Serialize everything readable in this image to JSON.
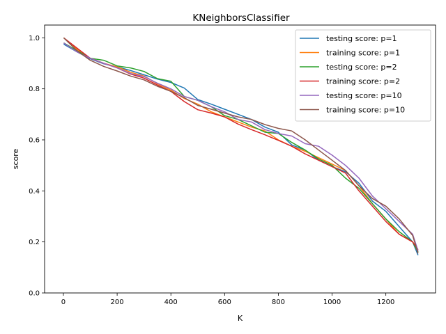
{
  "chart_data": {
    "type": "line",
    "title": "KNeighborsClassifier",
    "xlabel": "K",
    "ylabel": "score",
    "xlim": [
      -70,
      1385
    ],
    "ylim": [
      0.0,
      1.05
    ],
    "xticks": [
      0,
      200,
      400,
      600,
      800,
      1000,
      1200
    ],
    "yticks": [
      0.0,
      0.2,
      0.4,
      0.6,
      0.8,
      1.0
    ],
    "xtick_labels": [
      "0",
      "200",
      "400",
      "600",
      "800",
      "1000",
      "1200"
    ],
    "ytick_labels": [
      "0.0",
      "0.2",
      "0.4",
      "0.6",
      "0.8",
      "1.0"
    ],
    "grid": false,
    "legend_position": "top-right",
    "x": [
      1,
      50,
      100,
      150,
      200,
      250,
      300,
      350,
      400,
      450,
      500,
      550,
      600,
      650,
      700,
      750,
      800,
      850,
      900,
      950,
      1000,
      1050,
      1100,
      1150,
      1200,
      1250,
      1300,
      1320
    ],
    "series": [
      {
        "name": "testing score: p=1",
        "color": "#1f77b4",
        "values": [
          0.975,
          0.945,
          0.918,
          0.898,
          0.886,
          0.872,
          0.855,
          0.838,
          0.825,
          0.803,
          0.758,
          0.74,
          0.72,
          0.7,
          0.68,
          0.65,
          0.63,
          0.58,
          0.56,
          0.52,
          0.495,
          0.475,
          0.43,
          0.36,
          0.32,
          0.26,
          0.2,
          0.148
        ]
      },
      {
        "name": "training score: p=1",
        "color": "#ff7f0e",
        "values": [
          1.0,
          0.955,
          0.92,
          0.9,
          0.886,
          0.865,
          0.85,
          0.82,
          0.795,
          0.762,
          0.74,
          0.71,
          0.69,
          0.67,
          0.65,
          0.635,
          0.6,
          0.575,
          0.555,
          0.53,
          0.505,
          0.48,
          0.42,
          0.35,
          0.29,
          0.23,
          0.2,
          0.16
        ]
      },
      {
        "name": "testing score: p=2",
        "color": "#2ca02c",
        "values": [
          0.98,
          0.95,
          0.92,
          0.912,
          0.89,
          0.882,
          0.868,
          0.84,
          0.83,
          0.77,
          0.755,
          0.73,
          0.695,
          0.68,
          0.655,
          0.63,
          0.625,
          0.59,
          0.56,
          0.525,
          0.5,
          0.45,
          0.41,
          0.35,
          0.29,
          0.24,
          0.2,
          0.16
        ]
      },
      {
        "name": "training score: p=2",
        "color": "#d62728",
        "values": [
          1.0,
          0.96,
          0.92,
          0.9,
          0.882,
          0.858,
          0.842,
          0.815,
          0.79,
          0.75,
          0.718,
          0.705,
          0.69,
          0.662,
          0.64,
          0.62,
          0.598,
          0.575,
          0.545,
          0.52,
          0.495,
          0.47,
          0.4,
          0.34,
          0.28,
          0.23,
          0.2,
          0.17
        ]
      },
      {
        "name": "testing score: p=10",
        "color": "#9467bd",
        "values": [
          0.98,
          0.945,
          0.92,
          0.9,
          0.882,
          0.86,
          0.848,
          0.822,
          0.8,
          0.77,
          0.755,
          0.73,
          0.71,
          0.68,
          0.67,
          0.64,
          0.625,
          0.615,
          0.585,
          0.575,
          0.54,
          0.5,
          0.45,
          0.38,
          0.33,
          0.28,
          0.23,
          0.165
        ]
      },
      {
        "name": "training score: p=10",
        "color": "#8c564b",
        "values": [
          1.0,
          0.95,
          0.912,
          0.888,
          0.87,
          0.85,
          0.835,
          0.81,
          0.79,
          0.765,
          0.735,
          0.72,
          0.705,
          0.69,
          0.68,
          0.66,
          0.645,
          0.635,
          0.6,
          0.56,
          0.52,
          0.48,
          0.42,
          0.37,
          0.34,
          0.29,
          0.225,
          0.155
        ]
      }
    ]
  }
}
